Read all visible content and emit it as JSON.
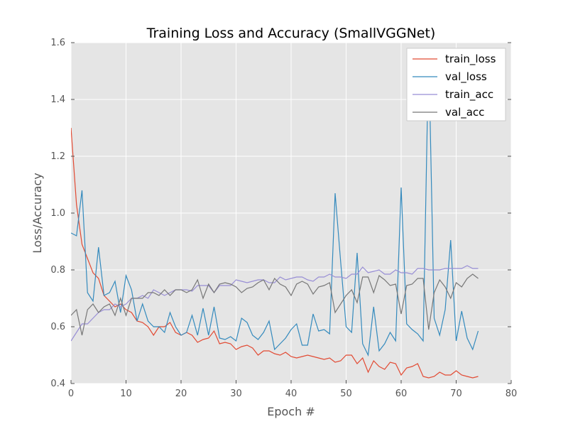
{
  "chart_data": {
    "type": "line",
    "title": "Training Loss and Accuracy (SmallVGGNet)",
    "xlabel": "Epoch #",
    "ylabel": "Loss/Accuracy",
    "xlim": [
      0,
      80
    ],
    "ylim": [
      0.4,
      1.6
    ],
    "xticks": [
      "0",
      "10",
      "20",
      "30",
      "40",
      "50",
      "60",
      "70",
      "80"
    ],
    "yticks": [
      "0.4",
      "0.6",
      "0.8",
      "1.0",
      "1.2",
      "1.4",
      "1.6"
    ],
    "grid": true,
    "background": "#e5e5e5",
    "legend_position": "top-right",
    "series": [
      {
        "name": "train_loss",
        "color": "#e24a33",
        "x": [
          0,
          1,
          2,
          3,
          4,
          5,
          6,
          7,
          8,
          9,
          10,
          11,
          12,
          13,
          14,
          15,
          16,
          17,
          18,
          19,
          20,
          21,
          22,
          23,
          24,
          25,
          26,
          27,
          28,
          29,
          30,
          31,
          32,
          33,
          34,
          35,
          36,
          37,
          38,
          39,
          40,
          41,
          42,
          43,
          44,
          45,
          46,
          47,
          48,
          49,
          50,
          51,
          52,
          53,
          54,
          55,
          56,
          57,
          58,
          59,
          60,
          61,
          62,
          63,
          64,
          65,
          66,
          67,
          68,
          69,
          70,
          71,
          72,
          73,
          74
        ],
        "values": [
          1.3,
          1.03,
          0.89,
          0.84,
          0.79,
          0.77,
          0.71,
          0.69,
          0.67,
          0.68,
          0.66,
          0.65,
          0.62,
          0.615,
          0.6,
          0.57,
          0.6,
          0.6,
          0.615,
          0.58,
          0.57,
          0.58,
          0.57,
          0.545,
          0.555,
          0.56,
          0.585,
          0.54,
          0.545,
          0.54,
          0.52,
          0.53,
          0.535,
          0.525,
          0.5,
          0.515,
          0.515,
          0.505,
          0.5,
          0.51,
          0.495,
          0.49,
          0.495,
          0.5,
          0.495,
          0.49,
          0.485,
          0.49,
          0.475,
          0.48,
          0.5,
          0.5,
          0.47,
          0.49,
          0.44,
          0.48,
          0.46,
          0.45,
          0.475,
          0.47,
          0.43,
          0.455,
          0.46,
          0.47,
          0.425,
          0.42,
          0.425,
          0.44,
          0.43,
          0.43,
          0.445,
          0.43,
          0.425,
          0.42,
          0.425
        ]
      },
      {
        "name": "val_loss",
        "color": "#348abd",
        "x": [
          0,
          1,
          2,
          3,
          4,
          5,
          6,
          7,
          8,
          9,
          10,
          11,
          12,
          13,
          14,
          15,
          16,
          17,
          18,
          19,
          20,
          21,
          22,
          23,
          24,
          25,
          26,
          27,
          28,
          29,
          30,
          31,
          32,
          33,
          34,
          35,
          36,
          37,
          38,
          39,
          40,
          41,
          42,
          43,
          44,
          45,
          46,
          47,
          48,
          49,
          50,
          51,
          52,
          53,
          54,
          55,
          56,
          57,
          58,
          59,
          60,
          61,
          62,
          63,
          64,
          65,
          66,
          67,
          68,
          69,
          70,
          71,
          72,
          73,
          74
        ],
        "values": [
          0.93,
          0.92,
          1.08,
          0.72,
          0.69,
          0.88,
          0.71,
          0.72,
          0.76,
          0.65,
          0.78,
          0.73,
          0.62,
          0.68,
          0.62,
          0.6,
          0.6,
          0.58,
          0.65,
          0.6,
          0.57,
          0.58,
          0.64,
          0.57,
          0.665,
          0.57,
          0.67,
          0.56,
          0.555,
          0.565,
          0.55,
          0.63,
          0.615,
          0.57,
          0.555,
          0.58,
          0.62,
          0.52,
          0.54,
          0.56,
          0.59,
          0.61,
          0.535,
          0.535,
          0.645,
          0.585,
          0.59,
          0.575,
          1.07,
          0.83,
          0.6,
          0.58,
          0.86,
          0.54,
          0.5,
          0.67,
          0.515,
          0.54,
          0.58,
          0.55,
          1.09,
          0.61,
          0.59,
          0.575,
          0.55,
          1.58,
          0.63,
          0.57,
          0.66,
          0.905,
          0.55,
          0.655,
          0.56,
          0.52,
          0.585
        ]
      },
      {
        "name": "train_acc",
        "color": "#988ed5",
        "x": [
          0,
          1,
          2,
          3,
          4,
          5,
          6,
          7,
          8,
          9,
          10,
          11,
          12,
          13,
          14,
          15,
          16,
          17,
          18,
          19,
          20,
          21,
          22,
          23,
          24,
          25,
          26,
          27,
          28,
          29,
          30,
          31,
          32,
          33,
          34,
          35,
          36,
          37,
          38,
          39,
          40,
          41,
          42,
          43,
          44,
          45,
          46,
          47,
          48,
          49,
          50,
          51,
          52,
          53,
          54,
          55,
          56,
          57,
          58,
          59,
          60,
          61,
          62,
          63,
          64,
          65,
          66,
          67,
          68,
          69,
          70,
          71,
          72,
          73,
          74
        ],
        "values": [
          0.55,
          0.58,
          0.61,
          0.61,
          0.63,
          0.65,
          0.66,
          0.66,
          0.68,
          0.67,
          0.68,
          0.7,
          0.7,
          0.71,
          0.7,
          0.73,
          0.72,
          0.71,
          0.72,
          0.73,
          0.73,
          0.73,
          0.725,
          0.745,
          0.745,
          0.745,
          0.72,
          0.745,
          0.745,
          0.745,
          0.765,
          0.76,
          0.755,
          0.76,
          0.765,
          0.765,
          0.755,
          0.755,
          0.775,
          0.765,
          0.77,
          0.775,
          0.775,
          0.765,
          0.76,
          0.775,
          0.775,
          0.785,
          0.775,
          0.775,
          0.77,
          0.785,
          0.785,
          0.81,
          0.79,
          0.795,
          0.8,
          0.785,
          0.785,
          0.8,
          0.79,
          0.79,
          0.785,
          0.805,
          0.805,
          0.8,
          0.8,
          0.8,
          0.805,
          0.805,
          0.805,
          0.805,
          0.815,
          0.805,
          0.805
        ]
      },
      {
        "name": "val_acc",
        "color": "#777777",
        "x": [
          0,
          1,
          2,
          3,
          4,
          5,
          6,
          7,
          8,
          9,
          10,
          11,
          12,
          13,
          14,
          15,
          16,
          17,
          18,
          19,
          20,
          21,
          22,
          23,
          24,
          25,
          26,
          27,
          28,
          29,
          30,
          31,
          32,
          33,
          34,
          35,
          36,
          37,
          38,
          39,
          40,
          41,
          42,
          43,
          44,
          45,
          46,
          47,
          48,
          49,
          50,
          51,
          52,
          53,
          54,
          55,
          56,
          57,
          58,
          59,
          60,
          61,
          62,
          63,
          64,
          65,
          66,
          67,
          68,
          69,
          70,
          71,
          72,
          73,
          74
        ],
        "values": [
          0.64,
          0.66,
          0.57,
          0.66,
          0.68,
          0.65,
          0.67,
          0.68,
          0.64,
          0.7,
          0.64,
          0.7,
          0.7,
          0.7,
          0.72,
          0.72,
          0.71,
          0.73,
          0.71,
          0.73,
          0.73,
          0.72,
          0.73,
          0.765,
          0.7,
          0.75,
          0.72,
          0.75,
          0.755,
          0.75,
          0.74,
          0.72,
          0.735,
          0.74,
          0.755,
          0.765,
          0.73,
          0.77,
          0.75,
          0.74,
          0.71,
          0.75,
          0.76,
          0.75,
          0.715,
          0.74,
          0.745,
          0.755,
          0.65,
          0.68,
          0.71,
          0.73,
          0.685,
          0.775,
          0.775,
          0.72,
          0.78,
          0.765,
          0.745,
          0.75,
          0.645,
          0.745,
          0.75,
          0.77,
          0.77,
          0.59,
          0.72,
          0.765,
          0.74,
          0.7,
          0.755,
          0.74,
          0.77,
          0.785,
          0.77
        ]
      }
    ]
  }
}
